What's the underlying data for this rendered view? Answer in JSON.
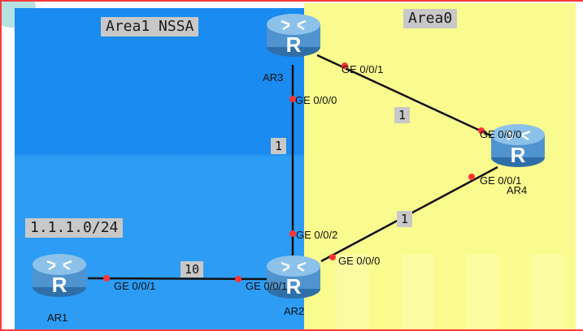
{
  "areas": {
    "area1_label": "Area1 NSSA",
    "area0_label": "Area0"
  },
  "network_label": "1.1.1.0/24",
  "routers": {
    "ar1": {
      "name": "AR1",
      "glyph": "R"
    },
    "ar2": {
      "name": "AR2",
      "glyph": "R"
    },
    "ar3": {
      "name": "AR3",
      "glyph": "R"
    },
    "ar4": {
      "name": "AR4",
      "glyph": "R"
    }
  },
  "links": {
    "ar1_ar2": {
      "cost": "10",
      "port_a": "GE 0/0/1",
      "port_b": "GE 0/0/1"
    },
    "ar2_ar3": {
      "cost": "1",
      "port_a": "GE 0/0/2",
      "port_b": "GE 0/0/0"
    },
    "ar3_ar4": {
      "cost": "1",
      "port_a": "GE 0/0/1",
      "port_b": "GE 0/0/0"
    },
    "ar2_ar4": {
      "cost": "1",
      "port_a": "GE 0/0/0",
      "port_b": "GE 0/0/1"
    }
  },
  "colors": {
    "area1": "#1a8bf0",
    "area0": "#fafb8e",
    "port_dot": "#ff3333",
    "link": "#111111",
    "router_body": "#5aa5dd"
  }
}
